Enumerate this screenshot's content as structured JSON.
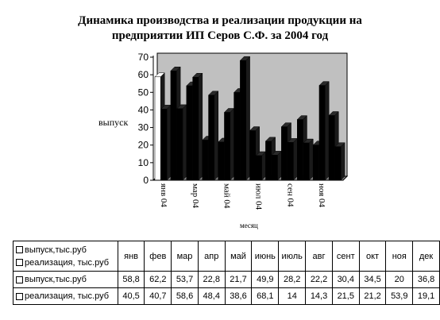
{
  "chart_data": {
    "type": "bar",
    "title_line1": "Динамика производства и реализации продукции  на",
    "title_line2": "предприятии ИП Серов С.Ф. за 2004 год",
    "ylabel": "выпуск",
    "xlabel": "месяц",
    "ylim": [
      0,
      70
    ],
    "yticks": [
      0,
      10,
      20,
      30,
      40,
      50,
      60,
      70
    ],
    "categories": [
      "янв 04",
      "фев 04",
      "мар 04",
      "апр 04",
      "май 04",
      "июн 04",
      "июл 04",
      "авг 04",
      "сен 04",
      "окт 04",
      "ноя 04",
      "дек 04"
    ],
    "xtick_labels": [
      "янв 04",
      "мар 04",
      "май 04",
      "июл 04",
      "сен 04",
      "ноя 04"
    ],
    "series": [
      {
        "name": "выпуск,тыс.руб",
        "values": [
          58.8,
          62.2,
          53.7,
          22.8,
          21.7,
          49.9,
          28.2,
          22.2,
          30.4,
          34.5,
          20,
          36.8
        ]
      },
      {
        "name": "реализация, тыс.руб",
        "values": [
          40.5,
          40.7,
          58.6,
          48.4,
          38.6,
          68.1,
          14,
          14.3,
          21.5,
          21.2,
          53.9,
          19.1
        ]
      }
    ],
    "table": {
      "header_label": "выпуск,тыс.руб",
      "header_label2": "реализация, тыс.руб",
      "months": [
        "янв",
        "фев",
        "мар",
        "апр",
        "май",
        "июнь",
        "июль",
        "авг",
        "сент",
        "окт",
        "ноя",
        "дек"
      ],
      "rows": [
        {
          "label": "выпуск,тыс.руб",
          "values": [
            "58,8",
            "62,2",
            "53,7",
            "22,8",
            "21,7",
            "49,9",
            "28,2",
            "22,2",
            "30,4",
            "34,5",
            "20",
            "36,8"
          ]
        },
        {
          "label": "реализация, тыс.руб",
          "values": [
            "40,5",
            "40,7",
            "58,6",
            "48,4",
            "38,6",
            "68,1",
            "14",
            "14,3",
            "21,5",
            "21,2",
            "53,9",
            "19,1"
          ]
        }
      ]
    },
    "colors": {
      "series1": "#000000",
      "series2": "#000000",
      "background": "#c0c0c0",
      "floor": "#808080"
    },
    "grid": false,
    "legend": "table"
  }
}
